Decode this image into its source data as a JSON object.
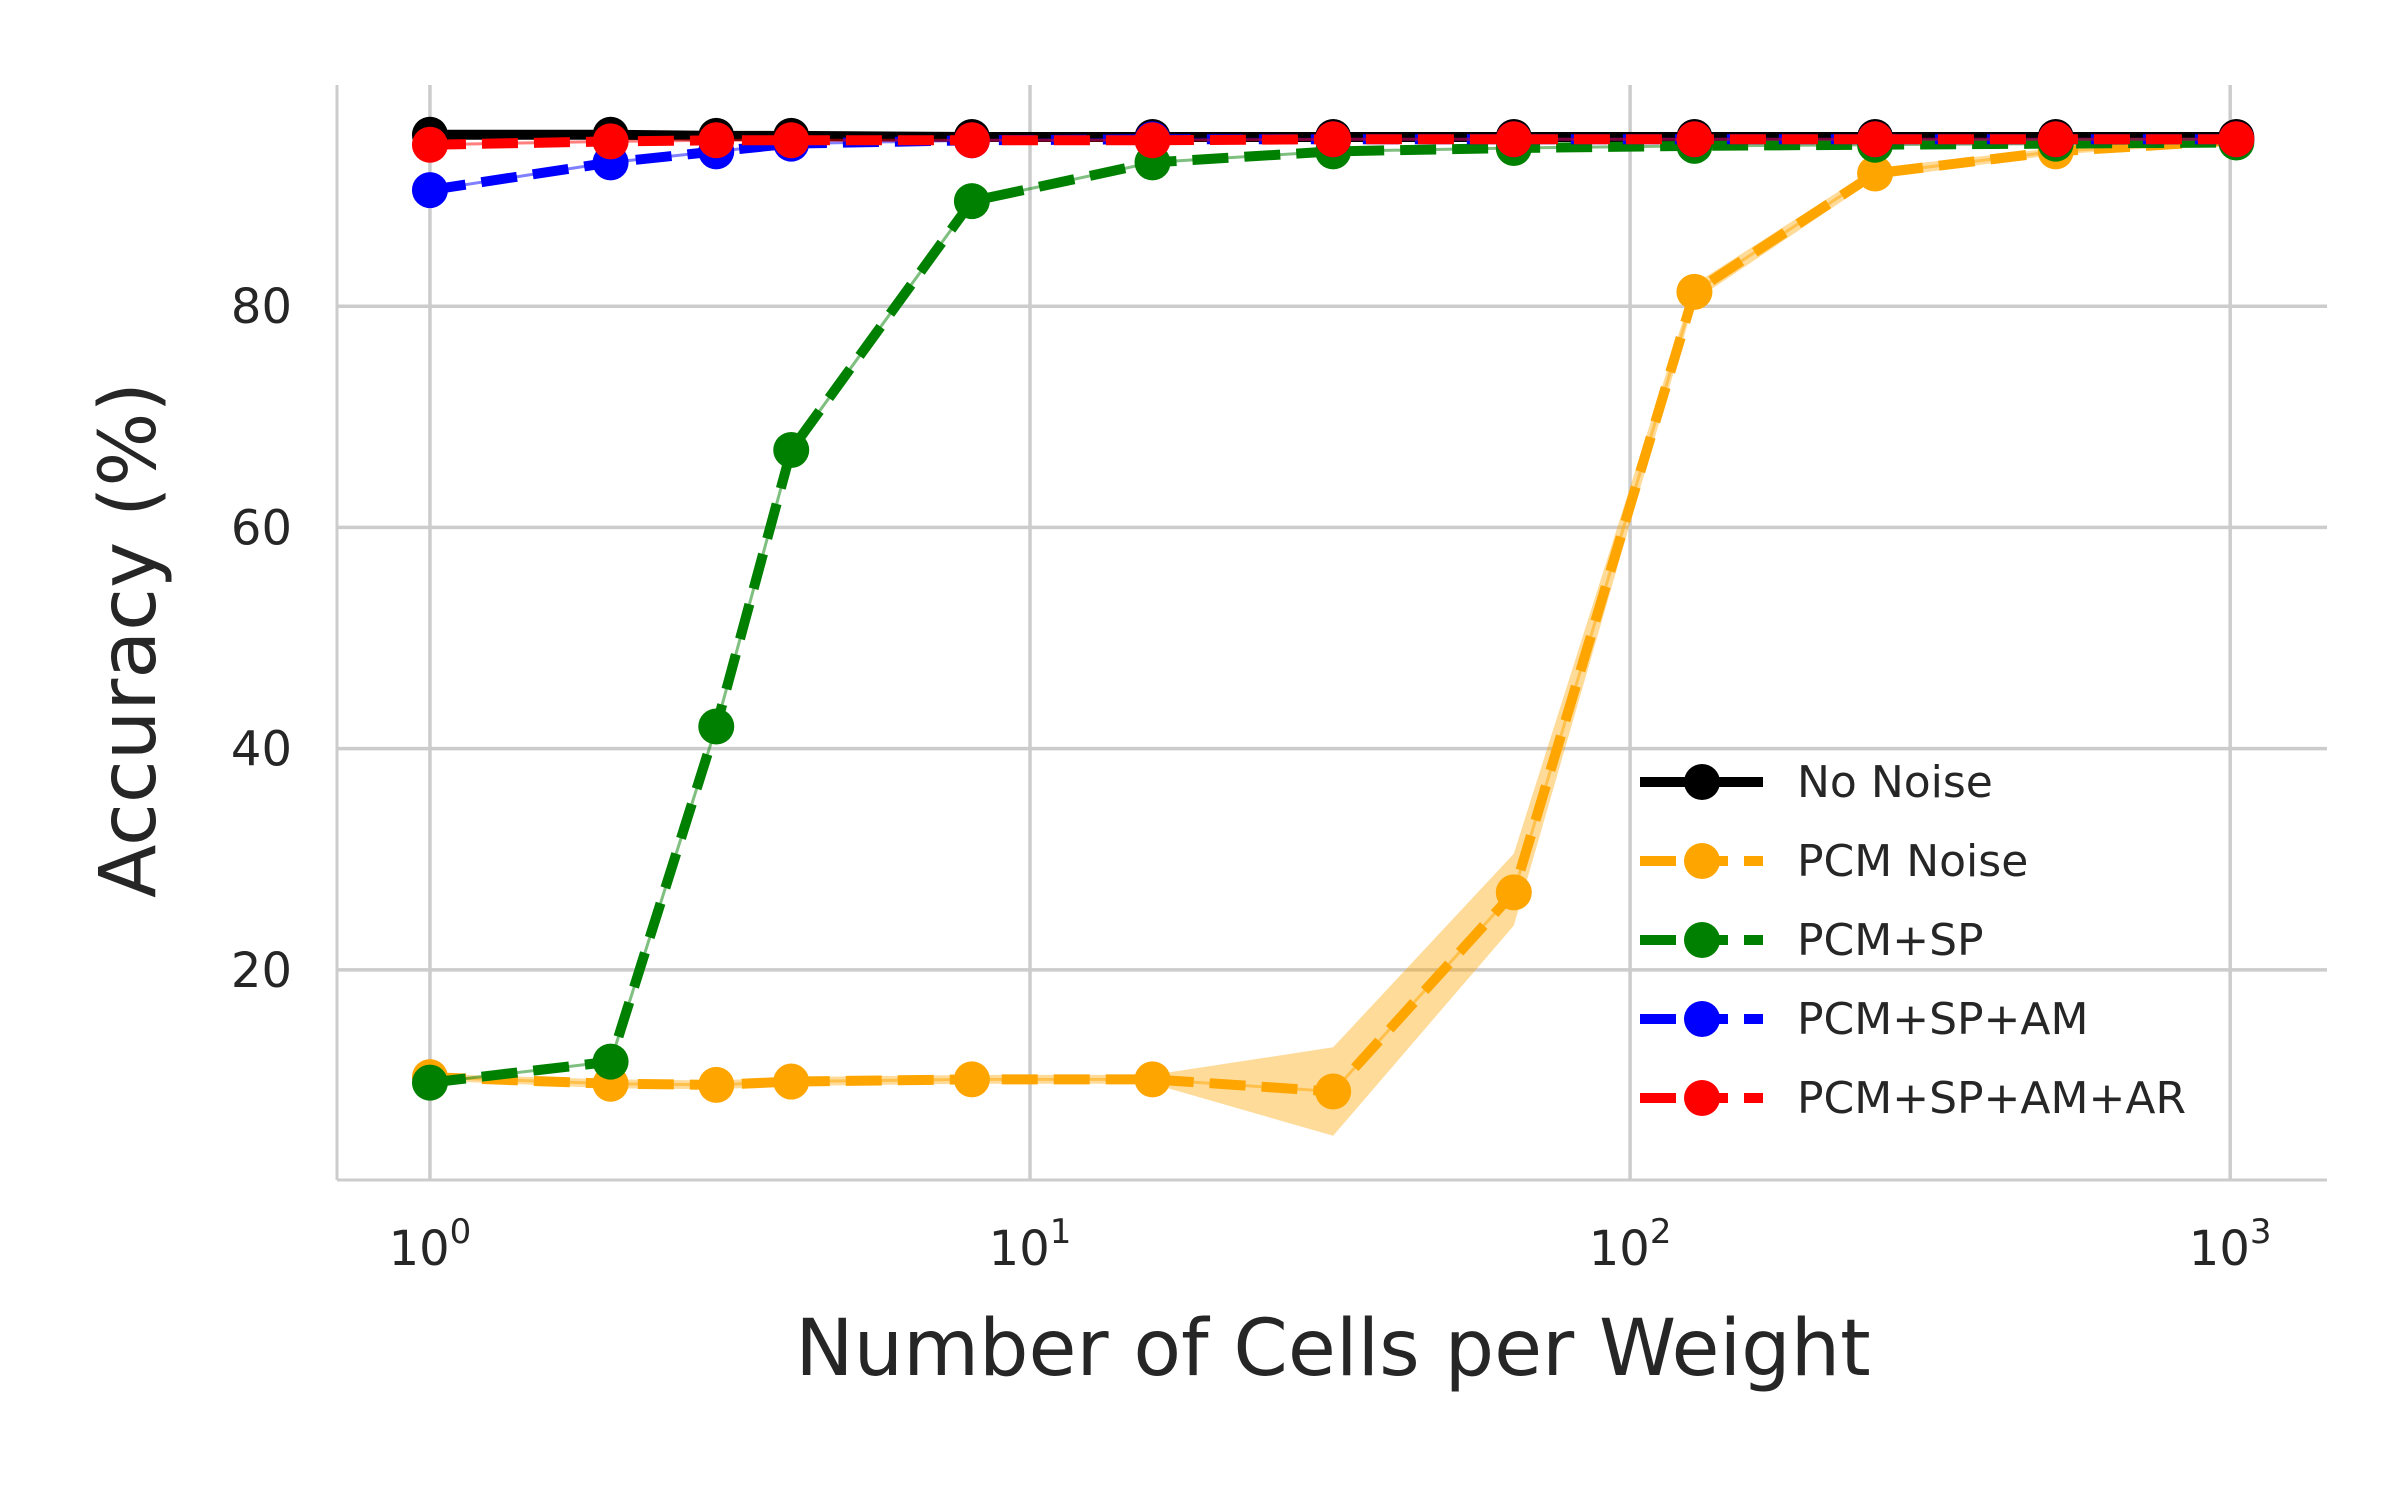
{
  "chart_data": {
    "type": "line",
    "title": "",
    "xlabel": "Number of Cells per Weight",
    "ylabel": "Accuracy (%)",
    "xscale": "log",
    "xlim": [
      0.7,
      1450
    ],
    "ylim": [
      1,
      100
    ],
    "grid": true,
    "legend_position": "lower-right",
    "x_ticks": [
      {
        "value": 1,
        "base": "10",
        "exp": "0"
      },
      {
        "value": 10,
        "base": "10",
        "exp": "1"
      },
      {
        "value": 100,
        "base": "10",
        "exp": "2"
      },
      {
        "value": 1000,
        "base": "10",
        "exp": "3"
      }
    ],
    "y_ticks": [
      20,
      40,
      60,
      80
    ],
    "x": [
      1,
      2,
      3,
      4,
      8,
      16,
      32,
      64,
      128,
      256,
      512,
      1024
    ],
    "series": [
      {
        "name": "No Noise",
        "color": "#000000",
        "dash": "solid",
        "values": [
          95.5,
          95.5,
          95.4,
          95.4,
          95.3,
          95.3,
          95.3,
          95.3,
          95.3,
          95.3,
          95.3,
          95.3
        ]
      },
      {
        "name": "PCM Noise",
        "color": "#ffa500",
        "dash": "dashed",
        "values": [
          10.3,
          9.7,
          9.6,
          9.9,
          10.1,
          10.1,
          9.0,
          27.0,
          81.3,
          92.0,
          94.0,
          95.0
        ],
        "band_lower": [
          10.0,
          9.3,
          9.2,
          9.5,
          9.7,
          9.7,
          5.0,
          24.0,
          80.5,
          91.5,
          93.7,
          94.8
        ],
        "band_upper": [
          10.6,
          10.1,
          10.0,
          10.3,
          10.5,
          10.5,
          13.0,
          30.5,
          82.0,
          92.5,
          94.3,
          95.2
        ]
      },
      {
        "name": "PCM+SP",
        "color": "#008000",
        "dash": "dashed",
        "values": [
          9.8,
          11.7,
          42.0,
          67.0,
          89.5,
          93.0,
          94.0,
          94.3,
          94.5,
          94.6,
          94.7,
          94.8
        ]
      },
      {
        "name": "PCM+SP+AM",
        "color": "#0000ff",
        "dash": "dashed",
        "values": [
          90.5,
          93.0,
          94.0,
          94.7,
          95.0,
          95.1,
          95.1,
          95.1,
          95.1,
          95.1,
          95.1,
          95.1
        ]
      },
      {
        "name": "PCM+SP+AM+AR",
        "color": "#ff0000",
        "dash": "dashed",
        "values": [
          94.6,
          94.9,
          95.0,
          95.0,
          95.0,
          95.0,
          95.1,
          95.1,
          95.1,
          95.1,
          95.1,
          95.1
        ]
      }
    ]
  }
}
